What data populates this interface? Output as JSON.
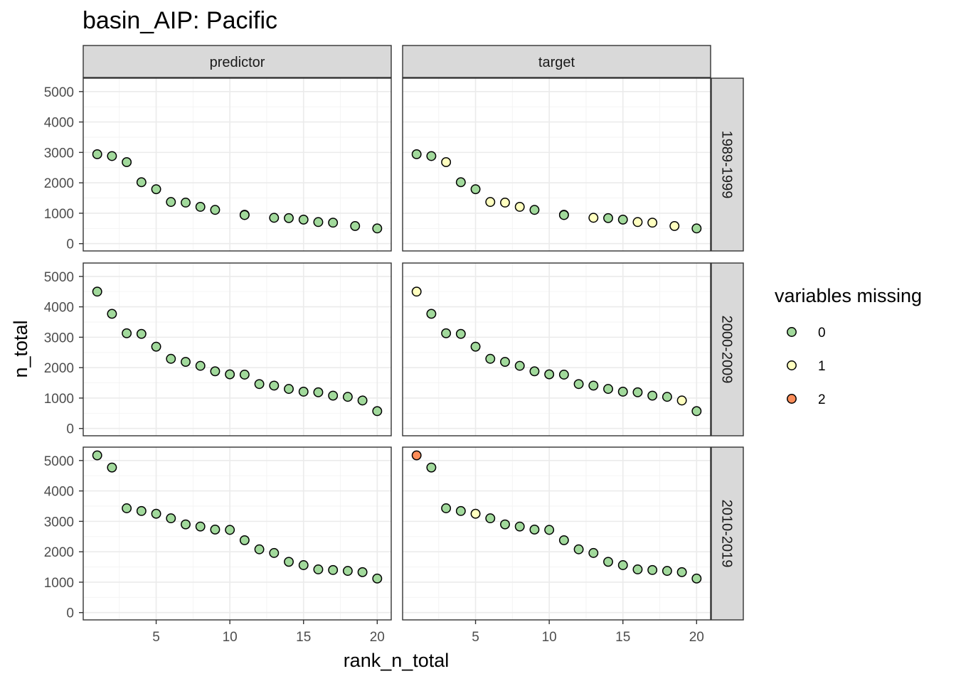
{
  "chart_data": {
    "type": "scatter",
    "title": "basin_AIP: Pacific",
    "xlabel": "rank_n_total",
    "ylabel": "n_total",
    "xlim": [
      0.05,
      20.95
    ],
    "ylim": [
      -240,
      5440
    ],
    "x_ticks": [
      5,
      10,
      15,
      20
    ],
    "y_ticks": [
      0,
      1000,
      2000,
      3000,
      4000,
      5000
    ],
    "x_tick_labels": [
      "5",
      "10",
      "15",
      "20"
    ],
    "y_tick_labels": [
      "0",
      "1000",
      "2000",
      "3000",
      "4000",
      "5000"
    ],
    "columns": [
      "predictor",
      "target"
    ],
    "rows": [
      "1989-1999",
      "2000-2009",
      "2010-2019"
    ],
    "legend": {
      "title": "variables missing",
      "placement": "right",
      "items": [
        {
          "label": "0",
          "color": "#a1d99b"
        },
        {
          "label": "1",
          "color": "#ffffbf"
        },
        {
          "label": "2",
          "color": "#fc8d59"
        }
      ]
    },
    "panels": [
      {
        "row": "1989-1999",
        "col": "predictor",
        "points": [
          [
            1,
            2940,
            0
          ],
          [
            2,
            2880,
            0
          ],
          [
            3,
            2680,
            0
          ],
          [
            4,
            2020,
            0
          ],
          [
            5,
            1790,
            0
          ],
          [
            6,
            1370,
            0
          ],
          [
            7,
            1350,
            0
          ],
          [
            8,
            1210,
            0
          ],
          [
            9,
            1110,
            0
          ],
          [
            11,
            950,
            0
          ],
          [
            11,
            940,
            0
          ],
          [
            13,
            850,
            0
          ],
          [
            14,
            840,
            0
          ],
          [
            15,
            790,
            0
          ],
          [
            16,
            710,
            0
          ],
          [
            17,
            690,
            0
          ],
          [
            18.5,
            580,
            0
          ],
          [
            20,
            500,
            0
          ]
        ]
      },
      {
        "row": "1989-1999",
        "col": "target",
        "points": [
          [
            1,
            2940,
            0
          ],
          [
            2,
            2880,
            0
          ],
          [
            3,
            2680,
            1
          ],
          [
            4,
            2020,
            0
          ],
          [
            5,
            1790,
            0
          ],
          [
            6,
            1370,
            1
          ],
          [
            7,
            1350,
            1
          ],
          [
            8,
            1210,
            1
          ],
          [
            9,
            1110,
            0
          ],
          [
            11,
            950,
            0
          ],
          [
            11,
            940,
            0
          ],
          [
            13,
            850,
            1
          ],
          [
            14,
            840,
            0
          ],
          [
            15,
            790,
            0
          ],
          [
            16,
            710,
            1
          ],
          [
            17,
            690,
            1
          ],
          [
            18.5,
            580,
            1
          ],
          [
            20,
            500,
            0
          ]
        ]
      },
      {
        "row": "2000-2009",
        "col": "predictor",
        "points": [
          [
            1,
            4500,
            0
          ],
          [
            2,
            3770,
            0
          ],
          [
            3,
            3130,
            0
          ],
          [
            4,
            3110,
            0
          ],
          [
            5,
            2690,
            0
          ],
          [
            6,
            2290,
            0
          ],
          [
            7,
            2190,
            0
          ],
          [
            8,
            2060,
            0
          ],
          [
            9,
            1880,
            0
          ],
          [
            10,
            1780,
            0
          ],
          [
            11,
            1770,
            0
          ],
          [
            12,
            1460,
            0
          ],
          [
            13,
            1410,
            0
          ],
          [
            14,
            1300,
            0
          ],
          [
            15,
            1210,
            0
          ],
          [
            16,
            1190,
            0
          ],
          [
            17,
            1080,
            0
          ],
          [
            18,
            1040,
            0
          ],
          [
            19,
            920,
            0
          ],
          [
            20,
            570,
            0
          ]
        ]
      },
      {
        "row": "2000-2009",
        "col": "target",
        "points": [
          [
            1,
            4500,
            1
          ],
          [
            2,
            3770,
            0
          ],
          [
            3,
            3130,
            0
          ],
          [
            4,
            3110,
            0
          ],
          [
            5,
            2690,
            0
          ],
          [
            6,
            2290,
            0
          ],
          [
            7,
            2190,
            0
          ],
          [
            8,
            2060,
            0
          ],
          [
            9,
            1880,
            0
          ],
          [
            10,
            1780,
            0
          ],
          [
            11,
            1770,
            0
          ],
          [
            12,
            1460,
            0
          ],
          [
            13,
            1410,
            0
          ],
          [
            14,
            1300,
            0
          ],
          [
            15,
            1210,
            0
          ],
          [
            16,
            1190,
            0
          ],
          [
            17,
            1080,
            0
          ],
          [
            18,
            1040,
            0
          ],
          [
            19,
            920,
            1
          ],
          [
            20,
            570,
            0
          ]
        ]
      },
      {
        "row": "2010-2019",
        "col": "predictor",
        "points": [
          [
            1,
            5170,
            0
          ],
          [
            2,
            4770,
            0
          ],
          [
            3,
            3430,
            0
          ],
          [
            4,
            3340,
            0
          ],
          [
            5,
            3250,
            0
          ],
          [
            6,
            3100,
            0
          ],
          [
            7,
            2900,
            0
          ],
          [
            8,
            2830,
            0
          ],
          [
            9,
            2730,
            0
          ],
          [
            10,
            2720,
            0
          ],
          [
            11,
            2380,
            0
          ],
          [
            12,
            2080,
            0
          ],
          [
            13,
            1960,
            0
          ],
          [
            14,
            1670,
            0
          ],
          [
            15,
            1560,
            0
          ],
          [
            16,
            1420,
            0
          ],
          [
            17,
            1400,
            0
          ],
          [
            18,
            1370,
            0
          ],
          [
            19,
            1330,
            0
          ],
          [
            20,
            1120,
            0
          ]
        ]
      },
      {
        "row": "2010-2019",
        "col": "target",
        "points": [
          [
            1,
            5170,
            2
          ],
          [
            2,
            4770,
            0
          ],
          [
            3,
            3430,
            0
          ],
          [
            4,
            3340,
            0
          ],
          [
            5,
            3250,
            1
          ],
          [
            6,
            3100,
            0
          ],
          [
            7,
            2900,
            0
          ],
          [
            8,
            2830,
            0
          ],
          [
            9,
            2730,
            0
          ],
          [
            10,
            2720,
            0
          ],
          [
            11,
            2380,
            0
          ],
          [
            12,
            2080,
            0
          ],
          [
            13,
            1960,
            0
          ],
          [
            14,
            1670,
            0
          ],
          [
            15,
            1560,
            0
          ],
          [
            16,
            1420,
            0
          ],
          [
            17,
            1400,
            0
          ],
          [
            18,
            1370,
            0
          ],
          [
            19,
            1330,
            0
          ],
          [
            20,
            1120,
            0
          ]
        ]
      }
    ]
  }
}
